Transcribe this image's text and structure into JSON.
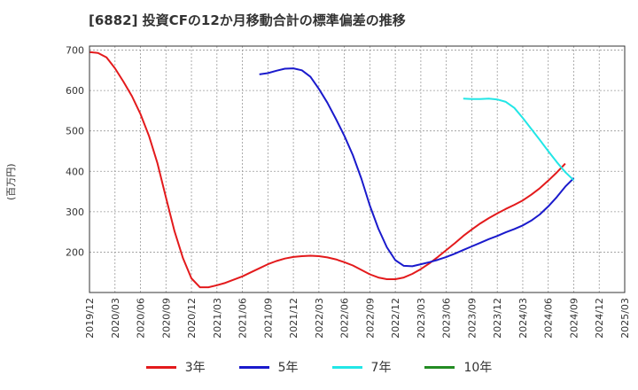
{
  "title": "[6882]  投資CFの12か月移動合計の標準偏差の推移",
  "chart_data": {
    "type": "line",
    "title": "[6882]  投資CFの12か月移動合計の標準偏差の推移",
    "ylabel": "(百万円)",
    "xlabel": "",
    "ylim": [
      100,
      710
    ],
    "yticks": [
      200,
      300,
      400,
      500,
      600,
      700
    ],
    "xticks": [
      "2019/12",
      "2020/03",
      "2020/06",
      "2020/09",
      "2020/12",
      "2021/03",
      "2021/06",
      "2021/09",
      "2021/12",
      "2022/03",
      "2022/06",
      "2022/09",
      "2022/12",
      "2023/03",
      "2023/06",
      "2023/09",
      "2023/12",
      "2024/03",
      "2024/06",
      "2024/09",
      "2024/12",
      "2025/03"
    ],
    "grid": true,
    "legend_position": "bottom",
    "series": [
      {
        "name": "3年",
        "color": "#e31a1c",
        "points": [
          [
            "2019/12",
            695
          ],
          [
            "2020/01",
            693
          ],
          [
            "2020/02",
            682
          ],
          [
            "2020/03",
            655
          ],
          [
            "2020/04",
            622
          ],
          [
            "2020/05",
            586
          ],
          [
            "2020/06",
            542
          ],
          [
            "2020/07",
            488
          ],
          [
            "2020/08",
            420
          ],
          [
            "2020/09",
            335
          ],
          [
            "2020/10",
            252
          ],
          [
            "2020/11",
            185
          ],
          [
            "2020/12",
            135
          ],
          [
            "2021/01",
            113
          ],
          [
            "2021/02",
            113
          ],
          [
            "2021/03",
            118
          ],
          [
            "2021/04",
            124
          ],
          [
            "2021/05",
            132
          ],
          [
            "2021/06",
            140
          ],
          [
            "2021/07",
            150
          ],
          [
            "2021/08",
            160
          ],
          [
            "2021/09",
            170
          ],
          [
            "2021/10",
            178
          ],
          [
            "2021/11",
            184
          ],
          [
            "2021/12",
            188
          ],
          [
            "2022/01",
            190
          ],
          [
            "2022/02",
            191
          ],
          [
            "2022/03",
            190
          ],
          [
            "2022/04",
            187
          ],
          [
            "2022/05",
            182
          ],
          [
            "2022/06",
            175
          ],
          [
            "2022/07",
            167
          ],
          [
            "2022/08",
            156
          ],
          [
            "2022/09",
            145
          ],
          [
            "2022/10",
            137
          ],
          [
            "2022/11",
            133
          ],
          [
            "2022/12",
            133
          ],
          [
            "2023/01",
            137
          ],
          [
            "2023/02",
            146
          ],
          [
            "2023/03",
            158
          ],
          [
            "2023/04",
            172
          ],
          [
            "2023/05",
            188
          ],
          [
            "2023/06",
            205
          ],
          [
            "2023/07",
            222
          ],
          [
            "2023/08",
            240
          ],
          [
            "2023/09",
            256
          ],
          [
            "2023/10",
            271
          ],
          [
            "2023/11",
            284
          ],
          [
            "2023/12",
            296
          ],
          [
            "2024/01",
            307
          ],
          [
            "2024/02",
            317
          ],
          [
            "2024/03",
            328
          ],
          [
            "2024/04",
            342
          ],
          [
            "2024/05",
            358
          ],
          [
            "2024/06",
            377
          ],
          [
            "2024/07",
            397
          ],
          [
            "2024/08",
            419
          ]
        ]
      },
      {
        "name": "5年",
        "color": "#1a1acc",
        "points": [
          [
            "2021/08",
            640
          ],
          [
            "2021/09",
            643
          ],
          [
            "2021/10",
            649
          ],
          [
            "2021/11",
            654
          ],
          [
            "2021/12",
            655
          ],
          [
            "2022/01",
            650
          ],
          [
            "2022/02",
            634
          ],
          [
            "2022/03",
            604
          ],
          [
            "2022/04",
            570
          ],
          [
            "2022/05",
            530
          ],
          [
            "2022/06",
            488
          ],
          [
            "2022/07",
            440
          ],
          [
            "2022/08",
            382
          ],
          [
            "2022/09",
            315
          ],
          [
            "2022/10",
            258
          ],
          [
            "2022/11",
            212
          ],
          [
            "2022/12",
            180
          ],
          [
            "2023/01",
            166
          ],
          [
            "2023/02",
            165
          ],
          [
            "2023/03",
            170
          ],
          [
            "2023/04",
            175
          ],
          [
            "2023/05",
            181
          ],
          [
            "2023/06",
            188
          ],
          [
            "2023/07",
            196
          ],
          [
            "2023/08",
            205
          ],
          [
            "2023/09",
            214
          ],
          [
            "2023/10",
            223
          ],
          [
            "2023/11",
            232
          ],
          [
            "2023/12",
            240
          ],
          [
            "2024/01",
            249
          ],
          [
            "2024/02",
            257
          ],
          [
            "2024/03",
            266
          ],
          [
            "2024/04",
            278
          ],
          [
            "2024/05",
            293
          ],
          [
            "2024/06",
            313
          ],
          [
            "2024/07",
            336
          ],
          [
            "2024/08",
            362
          ],
          [
            "2024/09",
            383
          ]
        ]
      },
      {
        "name": "7年",
        "color": "#22e6e6",
        "points": [
          [
            "2023/08",
            580
          ],
          [
            "2023/09",
            579
          ],
          [
            "2023/10",
            579
          ],
          [
            "2023/11",
            580
          ],
          [
            "2023/12",
            578
          ],
          [
            "2024/01",
            572
          ],
          [
            "2024/02",
            557
          ],
          [
            "2024/03",
            532
          ],
          [
            "2024/04",
            505
          ],
          [
            "2024/05",
            478
          ],
          [
            "2024/06",
            450
          ],
          [
            "2024/07",
            423
          ],
          [
            "2024/08",
            398
          ],
          [
            "2024/09",
            378
          ]
        ]
      },
      {
        "name": "10年",
        "color": "#228b22",
        "points": []
      }
    ]
  }
}
